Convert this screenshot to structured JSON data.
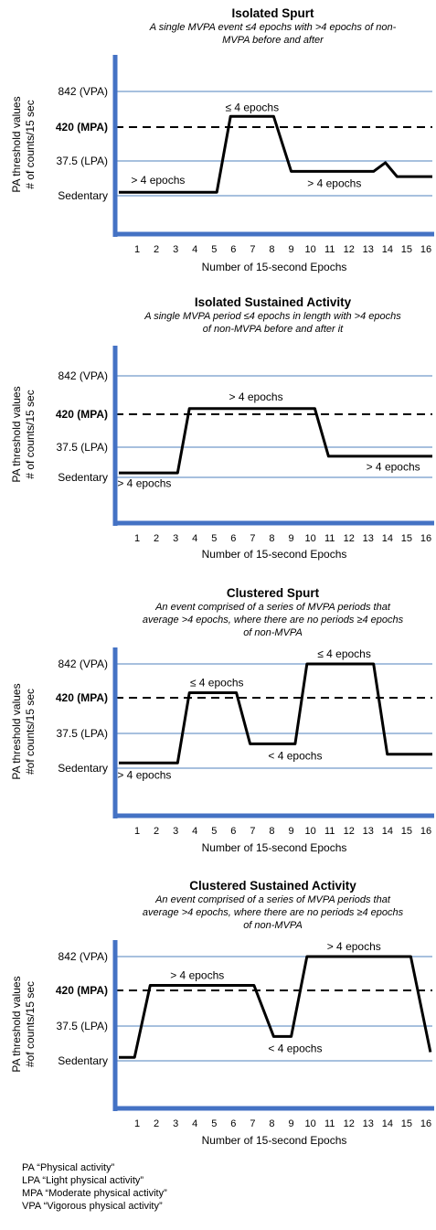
{
  "y_axis_label": [
    "PA threshold values",
    "# of counts/15 sec"
  ],
  "y_axis_label_alt": [
    "PA threshold values",
    "#of counts/15 sec"
  ],
  "x_axis_label": "Number of 15-second Epochs",
  "levels": [
    {
      "key": "vpa",
      "label": "842 (VPA)"
    },
    {
      "key": "mpa",
      "label": "420 (MPA)",
      "bold": true,
      "dashed": true
    },
    {
      "key": "lpa",
      "label": "37.5 (LPA)"
    },
    {
      "key": "sed",
      "label": "Sedentary"
    }
  ],
  "colors": {
    "axis": "#4472c4",
    "gridline": "#4f81bd",
    "trace": "#000000",
    "mpa_dash": "#000000"
  },
  "chart_data": [
    {
      "type": "line",
      "title": "Isolated Spurt",
      "subtitle": [
        "A single MVPA event ≤4 epochs with >4 epochs of non-",
        "MVPA before and after"
      ],
      "xlabel": "Number of 15-second Epochs",
      "ylabel": "PA threshold values # of counts/15 sec",
      "x_ticks": [
        1,
        2,
        3,
        4,
        5,
        6,
        7,
        8,
        9,
        10,
        11,
        12,
        13,
        14,
        15,
        16
      ],
      "y_ticks": [
        "Sedentary",
        "37.5 (LPA)",
        "420 (MPA)",
        "842 (VPA)"
      ],
      "y_scale": "categorical thresholds (ordinal level index: 0 = Sedentary, 1 = 37.5 LPA, 2 = 420 MPA, 3 = 842 VPA)",
      "series": [
        {
          "x": [
            0.0,
            5.0,
            5.7,
            7.9,
            8.8,
            13.0,
            13.6,
            14.2,
            16.0
          ],
          "y": [
            0.1,
            0.1,
            2.3,
            2.3,
            0.7,
            0.7,
            0.95,
            0.55,
            0.55
          ]
        }
      ],
      "annotations": [
        {
          "text": "> 4 epochs",
          "x": 2.0,
          "y": 0.45
        },
        {
          "text": "≤ 4 epochs",
          "x": 6.8,
          "y": 2.55
        },
        {
          "text": "> 4 epochs",
          "x": 11.0,
          "y": 0.35
        }
      ]
    },
    {
      "type": "line",
      "title": "Isolated Sustained Activity",
      "subtitle": [
        "A single MVPA period ≤4 epochs in length with >4 epochs",
        "of non-MVPA before and after it"
      ],
      "xlabel": "Number of 15-second Epochs",
      "ylabel": "PA threshold values # of counts/15 sec",
      "x_ticks": [
        1,
        2,
        3,
        4,
        5,
        6,
        7,
        8,
        9,
        10,
        11,
        12,
        13,
        14,
        15,
        16
      ],
      "y_ticks": [
        "Sedentary",
        "37.5 (LPA)",
        "420 (MPA)",
        "842 (VPA)"
      ],
      "y_scale": "categorical thresholds (ordinal level index: 0 = Sedentary, 1 = 37.5 LPA, 2 = 420 MPA, 3 = 842 VPA)",
      "series": [
        {
          "x": [
            0.0,
            3.0,
            3.6,
            10.0,
            10.7,
            16.0
          ],
          "y": [
            0.15,
            0.15,
            2.15,
            2.15,
            0.7,
            0.7
          ]
        }
      ],
      "annotations": [
        {
          "text": "> 4 epochs",
          "x": 1.3,
          "y": -0.2
        },
        {
          "text": "> 4 epochs",
          "x": 7.0,
          "y": 2.45
        },
        {
          "text": "> 4 epochs",
          "x": 14.0,
          "y": 0.35
        }
      ]
    },
    {
      "type": "line",
      "title": "Clustered Spurt",
      "subtitle": [
        "An event comprised of a series of MVPA periods that",
        "average >4 epochs, where there are no periods ≥4 epochs",
        "of non-MVPA"
      ],
      "xlabel": "Number of 15-second Epochs",
      "ylabel": "PA threshold values #of counts/15 sec",
      "x_ticks": [
        1,
        2,
        3,
        4,
        5,
        6,
        7,
        8,
        9,
        10,
        11,
        12,
        13,
        14,
        15,
        16
      ],
      "y_ticks": [
        "Sedentary",
        "37.5 (LPA)",
        "420 (MPA)",
        "842 (VPA)"
      ],
      "y_scale": "categorical thresholds (ordinal level index: 0 = Sedentary, 1 = 37.5 LPA, 2 = 420 MPA, 3 = 842 VPA)",
      "series": [
        {
          "x": [
            0.0,
            3.0,
            3.6,
            6.0,
            6.7,
            9.0,
            9.6,
            13.0,
            13.7,
            16.0
          ],
          "y": [
            0.15,
            0.15,
            2.15,
            2.15,
            0.7,
            0.7,
            3.0,
            3.0,
            0.4,
            0.4
          ]
        }
      ],
      "annotations": [
        {
          "text": "> 4 epochs",
          "x": 1.3,
          "y": -0.2
        },
        {
          "text": "≤ 4 epochs",
          "x": 5.0,
          "y": 2.45
        },
        {
          "text": "< 4 epochs",
          "x": 9.0,
          "y": 0.35
        },
        {
          "text": "≤ 4 epochs",
          "x": 11.5,
          "y": 3.3
        }
      ]
    },
    {
      "type": "line",
      "title": "Clustered Sustained Activity",
      "subtitle": [
        "An event comprised of a series of MVPA periods that",
        "average >4 epochs, where there are no periods ≥4 epochs",
        "of non-MVPA"
      ],
      "xlabel": "Number of 15-second Epochs",
      "ylabel": "PA threshold values #of counts/15 sec",
      "x_ticks": [
        1,
        2,
        3,
        4,
        5,
        6,
        7,
        8,
        9,
        10,
        11,
        12,
        13,
        14,
        15,
        16
      ],
      "y_ticks": [
        "Sedentary",
        "37.5 (LPA)",
        "420 (MPA)",
        "842 (VPA)"
      ],
      "y_scale": "categorical thresholds (ordinal level index: 0 = Sedentary, 1 = 37.5 LPA, 2 = 420 MPA, 3 = 842 VPA)",
      "series": [
        {
          "x": [
            0.0,
            0.8,
            1.6,
            6.9,
            7.9,
            8.8,
            9.6,
            14.9,
            15.9
          ],
          "y": [
            0.1,
            0.1,
            2.15,
            2.15,
            0.7,
            0.7,
            3.0,
            3.0,
            0.25
          ]
        }
      ],
      "annotations": [
        {
          "text": "> 4 epochs",
          "x": 4.0,
          "y": 2.45
        },
        {
          "text": "< 4 epochs",
          "x": 9.0,
          "y": 0.35
        },
        {
          "text": "> 4 epochs",
          "x": 12.0,
          "y": 3.3
        }
      ]
    }
  ],
  "legend_notes": [
    "PA “Physical activity”",
    "LPA “Light physical activity”",
    "MPA “Moderate physical activity”",
    "VPA “Vigorous physical activity”"
  ]
}
